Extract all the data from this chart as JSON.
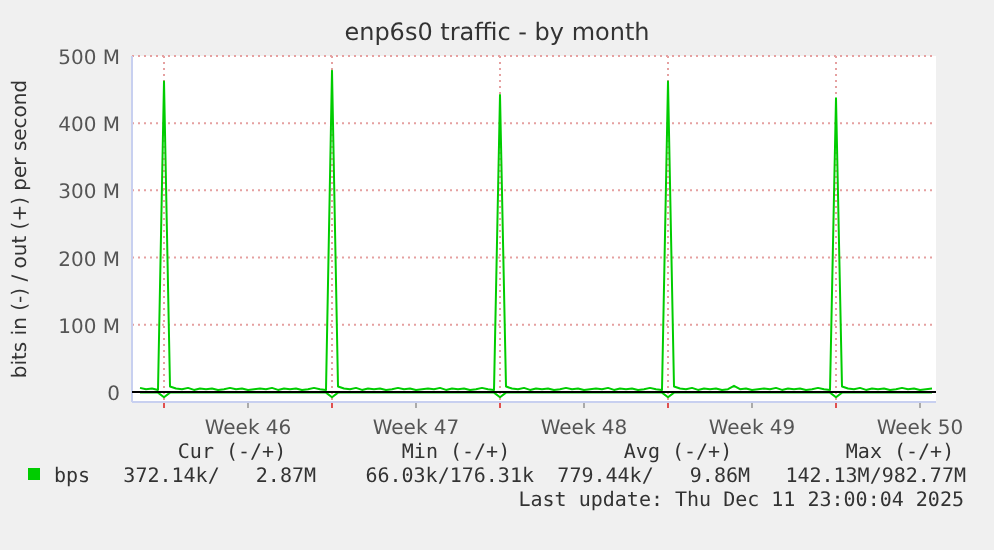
{
  "chart_data": {
    "type": "line",
    "title": "enp6s0 traffic - by month",
    "ylabel": "bits in (-) / out (+) per second",
    "categories": [
      null,
      null,
      null,
      null,
      null,
      null,
      null,
      null,
      null,
      null,
      null,
      null,
      null,
      null,
      null,
      null,
      null,
      null,
      "Week 46",
      null,
      null,
      null,
      null,
      null,
      null,
      null,
      null,
      null,
      null,
      null,
      null,
      null,
      null,
      null,
      null,
      null,
      null,
      null,
      null,
      null,
      null,
      null,
      null,
      null,
      null,
      null,
      "Week 47",
      null,
      null,
      null,
      null,
      null,
      null,
      null,
      null,
      null,
      null,
      null,
      null,
      null,
      null,
      null,
      null,
      null,
      null,
      null,
      null,
      null,
      null,
      null,
      null,
      null,
      null,
      null,
      "Week 48",
      null,
      null,
      null,
      null,
      null,
      null,
      null,
      null,
      null,
      null,
      null,
      null,
      null,
      null,
      null,
      null,
      null,
      null,
      null,
      null,
      null,
      null,
      null,
      null,
      null,
      null,
      null,
      "Week 49",
      null,
      null,
      null,
      null,
      null,
      null,
      null,
      null,
      null,
      null,
      null,
      null,
      null,
      null,
      null,
      null,
      null,
      null,
      null,
      null,
      null,
      null,
      null,
      null,
      null,
      null,
      null,
      "Week 50",
      null,
      null
    ],
    "series": [
      {
        "name": "bps",
        "color": "#00cc00",
        "values": [
          6,
          4,
          5,
          3,
          462,
          8,
          5,
          4,
          6,
          3,
          5,
          4,
          5,
          3,
          4,
          6,
          4,
          5,
          3,
          4,
          5,
          4,
          6,
          3,
          5,
          4,
          5,
          3,
          4,
          6,
          4,
          3,
          478,
          8,
          5,
          4,
          6,
          3,
          5,
          4,
          5,
          3,
          4,
          6,
          4,
          5,
          3,
          4,
          5,
          4,
          6,
          3,
          5,
          4,
          5,
          3,
          4,
          6,
          4,
          3,
          442,
          8,
          5,
          4,
          6,
          3,
          5,
          4,
          5,
          3,
          4,
          6,
          4,
          5,
          3,
          4,
          5,
          4,
          6,
          3,
          5,
          4,
          5,
          3,
          4,
          6,
          4,
          3,
          462,
          8,
          5,
          4,
          6,
          3,
          5,
          4,
          5,
          3,
          4,
          9,
          4,
          5,
          3,
          4,
          5,
          4,
          6,
          3,
          5,
          4,
          5,
          3,
          4,
          6,
          4,
          3,
          437,
          8,
          5,
          4,
          6,
          3,
          5,
          4,
          5,
          3,
          4,
          6,
          4,
          5,
          3,
          4,
          5
        ]
      },
      {
        "color": "#00cc00",
        "values": [
          -1,
          -1,
          -1,
          -1,
          -8,
          -1,
          -1,
          -1,
          -1,
          -1,
          -1,
          -1,
          -1,
          -1,
          -1,
          -1,
          -1,
          -1,
          -1,
          -1,
          -1,
          -1,
          -1,
          -1,
          -1,
          -1,
          -1,
          -1,
          -1,
          -1,
          -1,
          -1,
          -8,
          -1,
          -1,
          -1,
          -1,
          -1,
          -1,
          -1,
          -1,
          -1,
          -1,
          -1,
          -1,
          -1,
          -1,
          -1,
          -1,
          -1,
          -1,
          -1,
          -1,
          -1,
          -1,
          -1,
          -1,
          -1,
          -1,
          -1,
          -8,
          -1,
          -1,
          -1,
          -1,
          -1,
          -1,
          -1,
          -1,
          -1,
          -1,
          -1,
          -1,
          -1,
          -1,
          -1,
          -1,
          -1,
          -1,
          -1,
          -1,
          -1,
          -1,
          -1,
          -1,
          -1,
          -1,
          -1,
          -8,
          -1,
          -1,
          -1,
          -1,
          -1,
          -1,
          -1,
          -1,
          -1,
          -1,
          -1,
          -1,
          -1,
          -1,
          -1,
          -1,
          -1,
          -1,
          -1,
          -1,
          -1,
          -1,
          -1,
          -1,
          -1,
          -1,
          -1,
          -8,
          -1,
          -1,
          -1,
          -1,
          -1,
          -1,
          -1,
          -1,
          -1,
          -1,
          -1,
          -1,
          -1,
          -1,
          -1,
          -1
        ]
      }
    ],
    "ylim": [
      -15,
      500
    ],
    "yticks": [
      {
        "value": 0,
        "label": "0"
      },
      {
        "value": 100,
        "label": "100 M"
      },
      {
        "value": 200,
        "label": "200 M"
      },
      {
        "value": 300,
        "label": "300 M"
      },
      {
        "value": 400,
        "label": "400 M"
      },
      {
        "value": 500,
        "label": "500 M"
      }
    ],
    "grid": true,
    "legend": "bottom left",
    "annotations": [
      "Cur (-/+)",
      "Min (-/+)",
      "Avg (-/+)",
      "Max (-/+)",
      "372.14k/   2.87M",
      "66.03k/176.31k",
      "779.44k/   9.86M",
      "142.13M/982.77M",
      "Last update: Thu Dec 11 23:00:04 2025"
    ]
  }
}
